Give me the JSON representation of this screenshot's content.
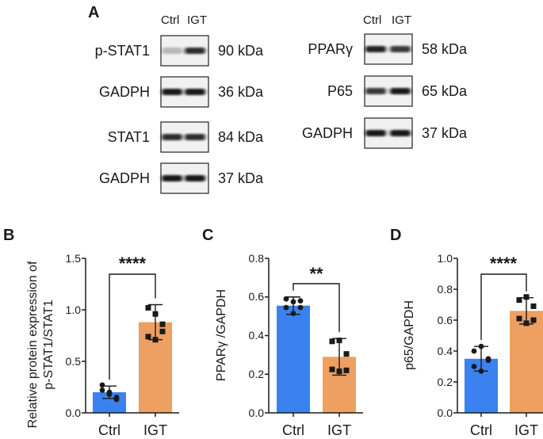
{
  "colors": {
    "ctrl": "#3b82f0",
    "igt": "#eda062",
    "axis": "#1a1a1a",
    "blot_bg": "#f1f1f1",
    "band": "#111111"
  },
  "panel_a": {
    "label": "A",
    "lane_labels": [
      "Ctrl",
      "IGT"
    ],
    "blots_left": [
      {
        "protein": "p-STAT1",
        "size": "90 kDa",
        "intensities": [
          0.25,
          0.85
        ]
      },
      {
        "protein": "GADPH",
        "size": "36 kDa",
        "intensities": [
          0.95,
          0.95
        ]
      },
      {
        "protein": "STAT1",
        "size": "84 kDa",
        "intensities": [
          0.85,
          0.85
        ]
      },
      {
        "protein": "GADPH",
        "size": "37 kDa",
        "intensities": [
          0.95,
          0.95
        ]
      }
    ],
    "blots_right": [
      {
        "protein": "PPARγ",
        "size": "58 kDa",
        "intensities": [
          0.9,
          0.8
        ]
      },
      {
        "protein": "P65",
        "size": "65 kDa",
        "intensities": [
          0.8,
          0.95
        ]
      },
      {
        "protein": "GADPH",
        "size": "37 kDa",
        "intensities": [
          0.95,
          0.95
        ]
      }
    ]
  },
  "chart_data": [
    {
      "type": "bar",
      "panel": "B",
      "categories": [
        "Ctrl",
        "IGT"
      ],
      "values": [
        0.2,
        0.88
      ],
      "errors": [
        0.06,
        0.17
      ],
      "points": [
        [
          0.27,
          0.2,
          0.15,
          0.22,
          0.18,
          0.13
        ],
        [
          1.02,
          0.96,
          0.86,
          0.74,
          0.71,
          0.79
        ]
      ],
      "ylabel_lines": [
        "Relative protein expression of",
        "p-STAT1/STAT1"
      ],
      "ylim": [
        0,
        1.5
      ],
      "yticks": [
        "0.0",
        "0.5",
        "1.0",
        "1.5"
      ],
      "ytick_values": [
        0,
        0.5,
        1.0,
        1.5
      ],
      "significance": "****"
    },
    {
      "type": "bar",
      "panel": "C",
      "categories": [
        "Ctrl",
        "IGT"
      ],
      "values": [
        0.555,
        0.29
      ],
      "errors": [
        0.045,
        0.095
      ],
      "points": [
        [
          0.59,
          0.575,
          0.58,
          0.545,
          0.515,
          0.545
        ],
        [
          0.37,
          0.375,
          0.305,
          0.225,
          0.215,
          0.22
        ]
      ],
      "ylabel": "PPARγ /GAPDH",
      "ylim": [
        0,
        0.8
      ],
      "yticks": [
        "0.0",
        "0.2",
        "0.4",
        "0.6",
        "0.8"
      ],
      "ytick_values": [
        0,
        0.2,
        0.4,
        0.6,
        0.8
      ],
      "significance": "**"
    },
    {
      "type": "bar",
      "panel": "D",
      "categories": [
        "Ctrl",
        "IGT"
      ],
      "values": [
        0.35,
        0.66
      ],
      "errors": [
        0.08,
        0.085
      ],
      "points": [
        [
          0.4,
          0.43,
          0.35,
          0.3,
          0.27,
          0.34
        ],
        [
          0.73,
          0.75,
          0.69,
          0.61,
          0.58,
          0.6
        ]
      ],
      "ylabel": "p65/GAPDH",
      "ylim": [
        0,
        1.0
      ],
      "yticks": [
        "0.0",
        "0.2",
        "0.4",
        "0.6",
        "0.8",
        "1.0"
      ],
      "ytick_values": [
        0,
        0.2,
        0.4,
        0.6,
        0.8,
        1.0
      ],
      "significance": "****"
    }
  ]
}
